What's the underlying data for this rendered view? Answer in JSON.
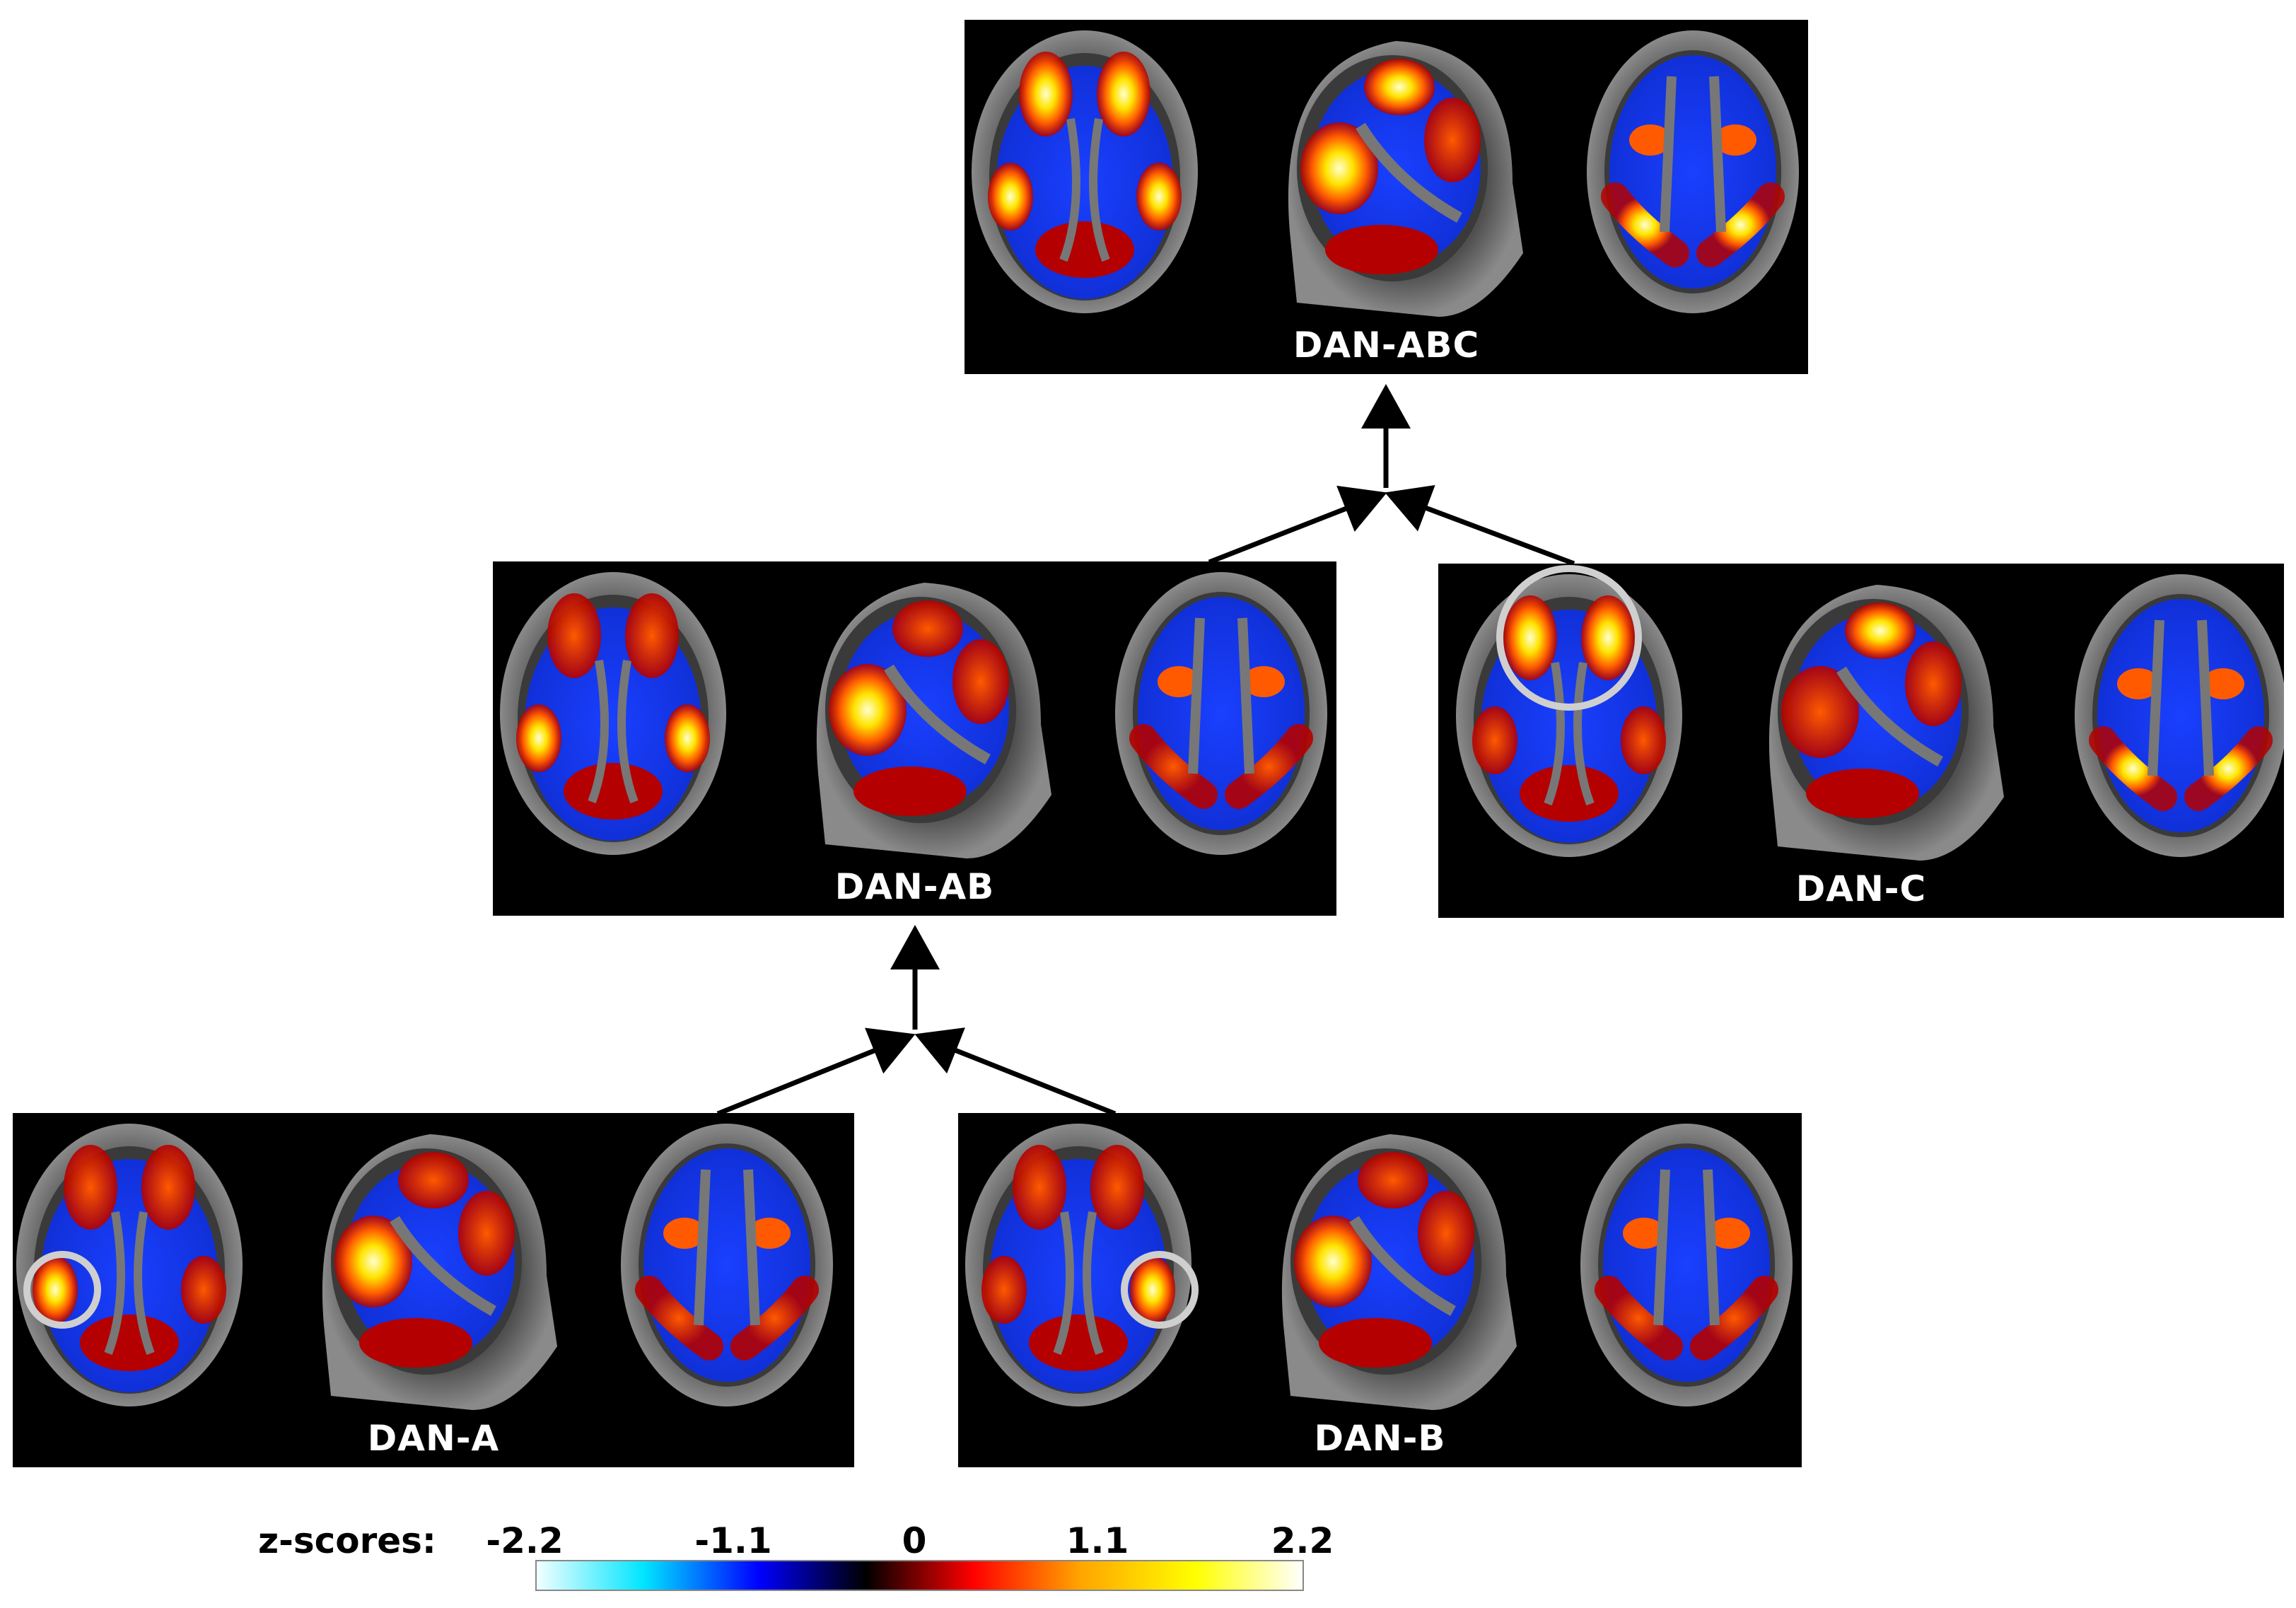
{
  "panels": {
    "dan_abc": {
      "label": "DAN-ABC"
    },
    "dan_ab": {
      "label": "DAN-AB"
    },
    "dan_c": {
      "label": "DAN-C"
    },
    "dan_a": {
      "label": "DAN-A"
    },
    "dan_b": {
      "label": "DAN-B"
    }
  },
  "colorbar": {
    "title": "z-scores:",
    "ticks": [
      "-2.2",
      "-1.1",
      "0",
      "1.1",
      "2.2"
    ],
    "colors": [
      "#f2ffff",
      "#00e5ff",
      "#0000ff",
      "#000000",
      "#ff0000",
      "#ffa500",
      "#ffff00",
      "#ffffff"
    ]
  },
  "colors": {
    "positive_low": "#b40000",
    "positive_mid": "#ff5a00",
    "positive_high": "#ffe400",
    "negative": "#1030d8",
    "highlight_circle": "#cfcfcf"
  }
}
